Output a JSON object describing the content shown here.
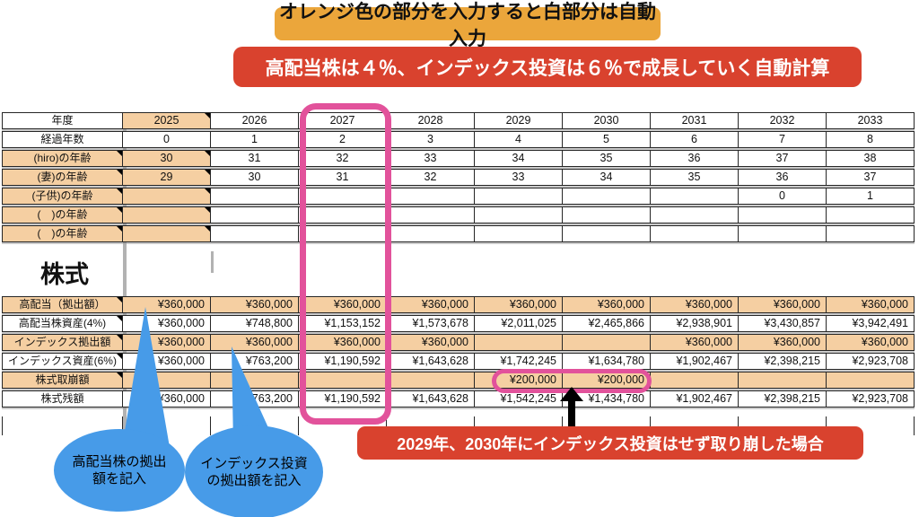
{
  "banners": {
    "top": "オレンジ色の部分を入力すると白部分は自動入力",
    "growth": "高配当株は４％、インデックス投資は６％で成長していく自動計算",
    "withdrawal_note": "2029年、2030年にインデックス投資はせず取り崩した場合"
  },
  "bubbles": {
    "dividend": "高配当株の拠出額を記入",
    "index": "インデックス投資の拠出額を記入"
  },
  "section_title": "株式",
  "age_table": {
    "year_row": {
      "label": "年度",
      "values": [
        "2025",
        "2026",
        "2027",
        "2028",
        "2029",
        "2030",
        "2031",
        "2032",
        "2033"
      ],
      "label_orange": false,
      "cells_orange": "first",
      "first_tri": true,
      "align": "center"
    },
    "rows": [
      {
        "label": "経過年数",
        "values": [
          "0",
          "1",
          "2",
          "3",
          "4",
          "5",
          "6",
          "7",
          "8"
        ],
        "label_orange": false,
        "label_tri": false,
        "cells_orange": "none",
        "first_tri": false,
        "align": "center"
      },
      {
        "label": "(hiro)の年齢",
        "values": [
          "30",
          "31",
          "32",
          "33",
          "34",
          "35",
          "36",
          "37",
          "38"
        ],
        "label_orange": true,
        "label_tri": true,
        "cells_orange": "first",
        "first_tri": true,
        "align": "center"
      },
      {
        "label": "(妻)の年齢",
        "values": [
          "29",
          "30",
          "31",
          "32",
          "33",
          "34",
          "35",
          "36",
          "37"
        ],
        "label_orange": true,
        "label_tri": true,
        "cells_orange": "first",
        "first_tri": true,
        "align": "center"
      },
      {
        "label": "(子供)の年齢",
        "values": [
          "",
          "",
          "",
          "",
          "",
          "",
          "",
          "0",
          "1"
        ],
        "label_orange": true,
        "label_tri": true,
        "cells_orange": "first",
        "first_tri": true,
        "align": "center"
      },
      {
        "label": "(　)の年齢",
        "values": [
          "",
          "",
          "",
          "",
          "",
          "",
          "",
          "",
          ""
        ],
        "label_orange": true,
        "label_tri": true,
        "cells_orange": "first",
        "first_tri": true,
        "align": "center"
      },
      {
        "label": "(　)の年齢",
        "values": [
          "",
          "",
          "",
          "",
          "",
          "",
          "",
          "",
          ""
        ],
        "label_orange": true,
        "label_tri": true,
        "cells_orange": "first",
        "first_tri": true,
        "align": "center"
      }
    ]
  },
  "stock_table": {
    "rows": [
      {
        "label": "高配当（拠出額）",
        "values": [
          "¥360,000",
          "¥360,000",
          "¥360,000",
          "¥360,000",
          "¥360,000",
          "¥360,000",
          "¥360,000",
          "¥360,000",
          "¥360,000"
        ],
        "label_orange": true,
        "label_tri": true,
        "cells_orange": "all",
        "first_tri": false,
        "align": "right"
      },
      {
        "label": "高配当株資産(4%)",
        "values": [
          "¥360,000",
          "¥748,800",
          "¥1,153,152",
          "¥1,573,678",
          "¥2,011,025",
          "¥2,465,866",
          "¥2,938,901",
          "¥3,430,857",
          "¥3,942,491"
        ],
        "label_orange": false,
        "label_tri": true,
        "cells_orange": "none",
        "first_tri": false,
        "align": "right"
      },
      {
        "label": "インデックス拠出額",
        "values": [
          "¥360,000",
          "¥360,000",
          "¥360,000",
          "¥360,000",
          "",
          "",
          "¥360,000",
          "¥360,000",
          "¥360,000"
        ],
        "label_orange": true,
        "label_tri": true,
        "cells_orange": "all",
        "first_tri": false,
        "align": "right"
      },
      {
        "label": "インデックス資産(6%)",
        "values": [
          "¥360,000",
          "¥763,200",
          "¥1,190,592",
          "¥1,643,628",
          "¥1,742,245",
          "¥1,634,780",
          "¥1,902,467",
          "¥2,398,215",
          "¥2,923,708"
        ],
        "label_orange": false,
        "label_tri": true,
        "cells_orange": "none",
        "first_tri": false,
        "align": "right"
      },
      {
        "label": "株式取崩額",
        "values": [
          "",
          "",
          "",
          "",
          "¥200,000",
          "¥200,000",
          "",
          "",
          ""
        ],
        "label_orange": true,
        "label_tri": true,
        "cells_orange": "all",
        "first_tri": false,
        "align": "right"
      },
      {
        "label": "株式残額",
        "values": [
          "¥360,000",
          "¥763,200",
          "¥1,190,592",
          "¥1,643,628",
          "¥1,542,245",
          "¥1,434,780",
          "¥1,902,467",
          "¥2,398,215",
          "¥2,923,708"
        ],
        "label_orange": false,
        "label_tri": false,
        "cells_orange": "none",
        "first_tri": false,
        "align": "right"
      }
    ]
  },
  "colors": {
    "banner_orange": "#EBA63B",
    "banner_red": "#D9422E",
    "cell_orange": "#F5CFA2",
    "highlight_pink": "#E2529B",
    "bubble_blue": "#479BE8"
  }
}
